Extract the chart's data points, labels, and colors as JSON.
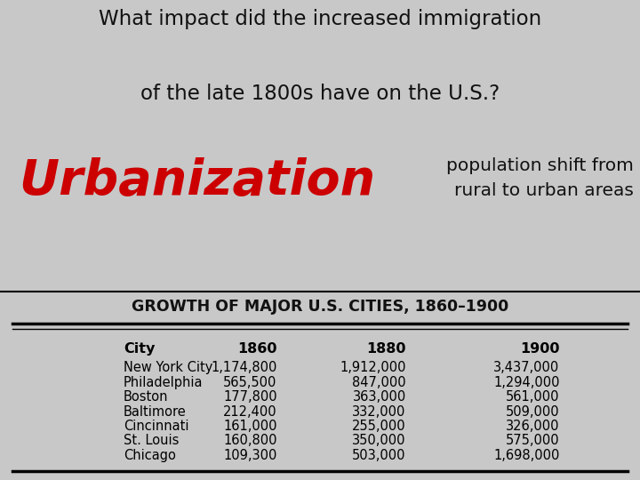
{
  "title_line1": "What impact did the increased immigration",
  "title_line2": "of the late 1800s have on the U.S.?",
  "big_word": "Urbanization",
  "subtitle": "population shift from\nrural to urban areas",
  "table_title": "GROWTH OF MAJOR U.S. CITIES, 1860–1900",
  "col_headers": [
    "City",
    "1860",
    "1880",
    "1900"
  ],
  "rows": [
    [
      "New York City",
      "1,174,800",
      "1,912,000",
      "3,437,000"
    ],
    [
      "Philadelphia",
      "565,500",
      "847,000",
      "1,294,000"
    ],
    [
      "Boston",
      "177,800",
      "363,000",
      "561,000"
    ],
    [
      "Baltimore",
      "212,400",
      "332,000",
      "509,000"
    ],
    [
      "Cincinnati",
      "161,000",
      "255,000",
      "326,000"
    ],
    [
      "St. Louis",
      "160,800",
      "350,000",
      "575,000"
    ],
    [
      "Chicago",
      "109,300",
      "503,000",
      "1,698,000"
    ]
  ],
  "bg_color": "#c8c8c8",
  "table_bg": "#d0dce8",
  "title_color": "#111111",
  "big_word_color": "#cc0000",
  "subtitle_color": "#111111",
  "table_title_color": "#111111"
}
